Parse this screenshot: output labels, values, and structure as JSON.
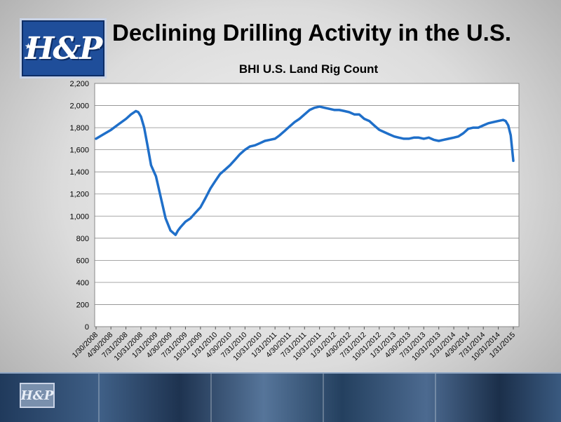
{
  "slide": {
    "title": "Declining Drilling Activity in the U.S.",
    "logo_text": "H&P",
    "accent": "#1f6fc9",
    "logo_color": "#1f4e9a"
  },
  "chart_data": {
    "type": "line",
    "title": "BHI U.S. Land Rig Count",
    "xlabel": "",
    "ylabel": "",
    "ylim": [
      0,
      2200
    ],
    "yticks": [
      0,
      200,
      400,
      600,
      800,
      1000,
      1200,
      1400,
      1600,
      1800,
      2000,
      2200
    ],
    "ytick_labels": [
      "0",
      "200",
      "400",
      "600",
      "800",
      "1,000",
      "1,200",
      "1,400",
      "1,600",
      "1,800",
      "2,000",
      "2,200"
    ],
    "xlim": [
      "2008-01-30",
      "2015-01-31"
    ],
    "xticks": [
      "2008-01-30",
      "2008-04-30",
      "2008-07-31",
      "2008-10-31",
      "2009-01-31",
      "2009-04-30",
      "2009-07-31",
      "2009-10-31",
      "2010-01-31",
      "2010-04-30",
      "2010-07-31",
      "2010-10-31",
      "2011-01-31",
      "2011-04-30",
      "2011-07-31",
      "2011-10-31",
      "2012-01-31",
      "2012-04-30",
      "2012-07-31",
      "2012-10-31",
      "2013-01-31",
      "2013-04-30",
      "2013-07-31",
      "2013-10-31",
      "2014-01-31",
      "2014-04-30",
      "2014-07-31",
      "2014-10-31",
      "2015-01-31"
    ],
    "xtick_labels": [
      "1/30/2008",
      "4/30/2008",
      "7/31/2008",
      "10/31/2008",
      "1/31/2009",
      "4/30/2009",
      "7/31/2009",
      "10/31/2009",
      "1/31/2010",
      "4/30/2010",
      "7/31/2010",
      "10/31/2010",
      "1/31/2011",
      "4/30/2011",
      "7/31/2011",
      "10/31/2011",
      "1/31/2012",
      "4/30/2012",
      "7/31/2012",
      "10/31/2012",
      "1/31/2013",
      "4/30/2013",
      "7/31/2013",
      "10/31/2013",
      "1/31/2014",
      "4/30/2014",
      "7/31/2014",
      "10/31/2014",
      "1/31/2015"
    ],
    "grid": true,
    "series": [
      {
        "name": "",
        "color": "#1f6fc9",
        "x": [
          "2008-01-30",
          "2008-03-15",
          "2008-05-01",
          "2008-06-15",
          "2008-08-01",
          "2008-08-31",
          "2008-09-30",
          "2008-10-15",
          "2008-10-31",
          "2008-11-20",
          "2008-12-10",
          "2009-01-01",
          "2009-01-31",
          "2009-02-28",
          "2009-03-31",
          "2009-04-30",
          "2009-05-31",
          "2009-06-15",
          "2009-07-01",
          "2009-07-31",
          "2009-08-31",
          "2009-09-30",
          "2009-10-31",
          "2009-11-30",
          "2009-12-31",
          "2010-01-31",
          "2010-02-28",
          "2010-03-31",
          "2010-04-30",
          "2010-05-31",
          "2010-06-30",
          "2010-07-31",
          "2010-08-31",
          "2010-09-30",
          "2010-10-31",
          "2010-11-30",
          "2010-12-31",
          "2011-01-31",
          "2011-02-28",
          "2011-03-31",
          "2011-04-30",
          "2011-05-31",
          "2011-06-30",
          "2011-07-31",
          "2011-08-31",
          "2011-09-30",
          "2011-10-31",
          "2011-11-30",
          "2011-12-31",
          "2012-01-31",
          "2012-02-29",
          "2012-03-31",
          "2012-04-30",
          "2012-05-31",
          "2012-06-30",
          "2012-07-31",
          "2012-08-31",
          "2012-09-30",
          "2012-10-31",
          "2012-11-30",
          "2012-12-31",
          "2013-01-31",
          "2013-02-28",
          "2013-03-31",
          "2013-04-30",
          "2013-05-31",
          "2013-06-30",
          "2013-07-31",
          "2013-08-31",
          "2013-09-30",
          "2013-10-31",
          "2013-11-30",
          "2013-12-31",
          "2014-01-31",
          "2014-02-28",
          "2014-03-31",
          "2014-04-30",
          "2014-05-31",
          "2014-06-30",
          "2014-07-31",
          "2014-08-31",
          "2014-09-30",
          "2014-10-31",
          "2014-11-30",
          "2014-12-15",
          "2014-12-31",
          "2015-01-15",
          "2015-01-31"
        ],
        "y": [
          1700,
          1740,
          1780,
          1830,
          1880,
          1920,
          1950,
          1940,
          1900,
          1800,
          1640,
          1460,
          1360,
          1180,
          980,
          870,
          830,
          870,
          900,
          950,
          980,
          1030,
          1080,
          1160,
          1250,
          1320,
          1380,
          1420,
          1460,
          1510,
          1560,
          1600,
          1630,
          1640,
          1660,
          1680,
          1690,
          1700,
          1730,
          1770,
          1810,
          1850,
          1880,
          1920,
          1960,
          1980,
          1990,
          1980,
          1970,
          1960,
          1960,
          1950,
          1940,
          1920,
          1920,
          1880,
          1860,
          1820,
          1780,
          1760,
          1740,
          1720,
          1710,
          1700,
          1700,
          1710,
          1710,
          1700,
          1710,
          1690,
          1680,
          1690,
          1700,
          1710,
          1720,
          1750,
          1790,
          1800,
          1800,
          1820,
          1840,
          1850,
          1860,
          1870,
          1860,
          1820,
          1730,
          1500
        ]
      }
    ]
  }
}
